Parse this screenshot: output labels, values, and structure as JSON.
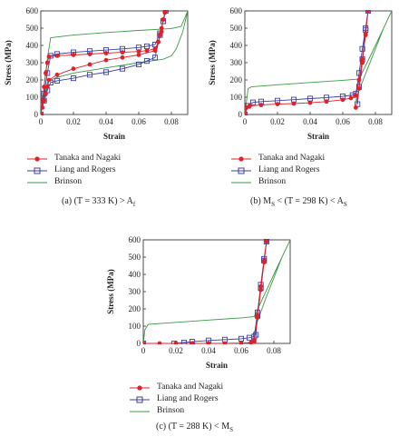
{
  "colors": {
    "tanaka": "#e0202a",
    "liang": "#3b3fa0",
    "brinson": "#3c9a46",
    "axis": "#222222",
    "tick": "#333333"
  },
  "legend_labels": {
    "tanaka": "Tanaka and Nagaki",
    "liang": "Liang and Rogers",
    "brinson": "Brinson"
  },
  "captions": {
    "a": "(a) (T = 333 K) > A",
    "a_sub": "f",
    "b_pre": "(b) M",
    "b_sub1": "S",
    "b_mid": " < (T = 298 K) < A",
    "b_sub2": "S",
    "c": "(c) (T = 288 K) < M",
    "c_sub": "S"
  },
  "chart_data": [
    {
      "type": "line",
      "panel": "a",
      "xlabel": "Strain",
      "ylabel": "Stress (MPa)",
      "xlim": [
        0,
        0.09
      ],
      "ylim": [
        0,
        600
      ],
      "xticks": [
        "0",
        "0.02",
        "0.04",
        "0.06",
        "0.08"
      ],
      "yticks": [
        "0",
        "100",
        "200",
        "300",
        "400",
        "500",
        "600"
      ],
      "series": [
        {
          "name": "Tanaka and Nagaki",
          "key": "tanaka",
          "marker": "circle",
          "x": [
            0,
            0.001,
            0.002,
            0.003,
            0.004,
            0.005,
            0.01,
            0.02,
            0.03,
            0.04,
            0.05,
            0.06,
            0.065,
            0.07,
            0.072,
            0.073,
            0.074,
            0.075,
            0.076,
            0.0765,
            0.075,
            0.074,
            0.072,
            0.07,
            0.06,
            0.05,
            0.04,
            0.03,
            0.02,
            0.01,
            0.005,
            0.004,
            0.003,
            0.002,
            0.001
          ],
          "y": [
            0,
            80,
            160,
            240,
            300,
            335,
            340,
            345,
            350,
            355,
            360,
            365,
            370,
            380,
            420,
            460,
            500,
            550,
            590,
            600,
            550,
            480,
            420,
            370,
            345,
            330,
            315,
            290,
            265,
            230,
            200,
            160,
            120,
            80,
            40
          ]
        },
        {
          "name": "Liang and Rogers",
          "key": "liang",
          "marker": "square",
          "x": [
            0,
            0.002,
            0.004,
            0.006,
            0.01,
            0.02,
            0.03,
            0.04,
            0.05,
            0.06,
            0.065,
            0.07,
            0.073,
            0.075,
            0.0765,
            0.075,
            0.073,
            0.07,
            0.065,
            0.06,
            0.05,
            0.04,
            0.03,
            0.02,
            0.01,
            0.006,
            0.004,
            0.002
          ],
          "y": [
            0,
            120,
            240,
            340,
            350,
            360,
            367,
            373,
            380,
            388,
            395,
            405,
            470,
            540,
            600,
            540,
            460,
            330,
            310,
            290,
            265,
            245,
            230,
            210,
            195,
            185,
            140,
            80
          ]
        },
        {
          "name": "Brinson",
          "key": "brinson",
          "marker": "none",
          "x": [
            0,
            0.004,
            0.006,
            0.02,
            0.04,
            0.06,
            0.08,
            0.086,
            0.09,
            0.087,
            0.083,
            0.08,
            0.075,
            0.06,
            0.04,
            0.02,
            0.01,
            0.006,
            0.004,
            0
          ],
          "y": [
            0,
            320,
            445,
            460,
            475,
            487,
            498,
            510,
            600,
            480,
            380,
            340,
            320,
            300,
            270,
            240,
            215,
            200,
            185,
            0
          ]
        }
      ]
    },
    {
      "type": "line",
      "panel": "b",
      "xlabel": "Strain",
      "ylabel": "Stress (MPa)",
      "xlim": [
        0,
        0.09
      ],
      "ylim": [
        0,
        600
      ],
      "xticks": [
        "0",
        "0.02",
        "0.04",
        "0.06",
        "0.08"
      ],
      "yticks": [
        "0",
        "100",
        "200",
        "300",
        "400",
        "500",
        "600"
      ],
      "series": [
        {
          "name": "Tanaka and Nagaki",
          "key": "tanaka",
          "marker": "circle",
          "x": [
            0,
            0.001,
            0.003,
            0.01,
            0.02,
            0.03,
            0.04,
            0.05,
            0.06,
            0.065,
            0.068,
            0.07,
            0.072,
            0.074,
            0.0755,
            0.074,
            0.072,
            0.07,
            0.068
          ],
          "y": [
            0,
            40,
            50,
            55,
            60,
            63,
            68,
            75,
            85,
            95,
            110,
            200,
            320,
            460,
            600,
            470,
            300,
            150,
            40
          ]
        },
        {
          "name": "Liang and Rogers",
          "key": "liang",
          "marker": "square",
          "x": [
            0,
            0.002,
            0.005,
            0.01,
            0.02,
            0.03,
            0.04,
            0.05,
            0.06,
            0.066,
            0.068,
            0.07,
            0.072,
            0.074,
            0.0755,
            0.074,
            0.072,
            0.07,
            0.069
          ],
          "y": [
            0,
            50,
            70,
            75,
            80,
            86,
            92,
            98,
            105,
            112,
            120,
            240,
            380,
            500,
            600,
            490,
            320,
            160,
            60
          ]
        },
        {
          "name": "Brinson",
          "key": "brinson",
          "marker": "none",
          "x": [
            0,
            0.002,
            0.004,
            0.02,
            0.04,
            0.06,
            0.07,
            0.08,
            0.09,
            0.085,
            0.08,
            0.075,
            0.07,
            0.068
          ],
          "y": [
            0,
            150,
            160,
            172,
            185,
            198,
            205,
            400,
            600,
            500,
            380,
            260,
            140,
            80
          ]
        }
      ]
    },
    {
      "type": "line",
      "panel": "c",
      "xlabel": "Strain",
      "ylabel": "Stress (MPa)",
      "xlim": [
        0,
        0.09
      ],
      "ylim": [
        0,
        600
      ],
      "xticks": [
        "0",
        "0.02",
        "0.04",
        "0.06",
        "0.08"
      ],
      "yticks": [
        "0",
        "100",
        "200",
        "300",
        "400",
        "500",
        "600"
      ],
      "series": [
        {
          "name": "Tanaka and Nagaki",
          "key": "tanaka",
          "marker": "circle",
          "x": [
            0,
            0.01,
            0.02,
            0.03,
            0.04,
            0.05,
            0.06,
            0.066,
            0.068,
            0.07,
            0.072,
            0.074,
            0.0755,
            0.074,
            0.072,
            0.07,
            0.068
          ],
          "y": [
            0,
            0,
            0,
            0,
            0,
            0,
            2,
            5,
            10,
            160,
            330,
            480,
            590,
            470,
            310,
            150,
            20
          ]
        },
        {
          "name": "Liang and Rogers",
          "key": "liang",
          "marker": "square",
          "x": [
            0,
            0.019,
            0.025,
            0.03,
            0.04,
            0.05,
            0.06,
            0.065,
            0.068,
            0.07,
            0.072,
            0.074,
            0.0755,
            0.074,
            0.072,
            0.07,
            0.069
          ],
          "y": [
            0,
            0,
            5,
            10,
            17,
            22,
            27,
            33,
            40,
            180,
            340,
            490,
            590,
            480,
            320,
            160,
            50
          ]
        },
        {
          "name": "Brinson",
          "key": "brinson",
          "marker": "none",
          "x": [
            0,
            0.001,
            0.003,
            0.02,
            0.04,
            0.06,
            0.068,
            0.08,
            0.09,
            0.085,
            0.08,
            0.075,
            0.07,
            0.068
          ],
          "y": [
            0,
            80,
            110,
            122,
            135,
            148,
            155,
            400,
            600,
            500,
            380,
            260,
            130,
            60
          ]
        }
      ]
    }
  ]
}
